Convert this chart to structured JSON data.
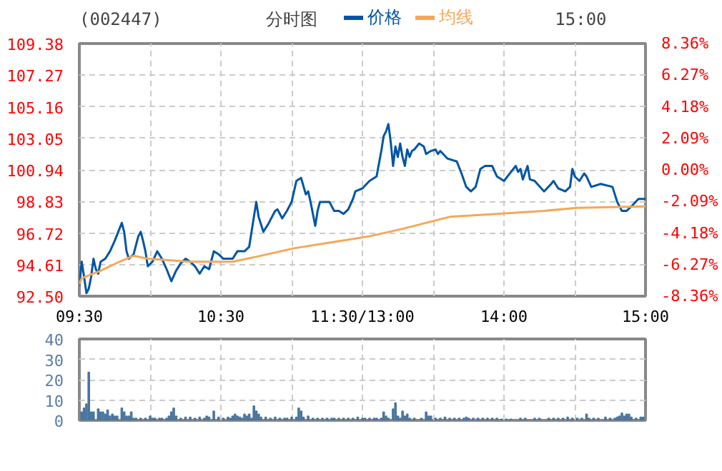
{
  "chart_data": [
    {
      "type": "line",
      "title": "(002447)",
      "subtitle": "分时图",
      "annotations": [
        "15:00"
      ],
      "categories": [
        "09:30",
        null,
        null,
        null,
        null,
        null,
        null,
        null,
        null,
        null,
        null,
        null,
        null,
        null,
        null,
        null,
        null,
        null,
        null,
        null,
        null,
        null,
        null,
        null,
        null,
        null,
        null,
        null,
        null,
        null,
        null,
        null,
        null,
        null,
        null,
        null,
        null,
        null,
        null,
        null,
        null,
        null,
        null,
        null,
        null,
        null,
        null,
        null,
        null,
        null,
        null,
        null,
        null,
        null,
        null,
        null,
        null,
        null,
        null,
        null,
        "10:30",
        null,
        null,
        null,
        null,
        null,
        null,
        null,
        null,
        null,
        null,
        null,
        null,
        null,
        null,
        null,
        null,
        null,
        null,
        null,
        null,
        null,
        null,
        null,
        null,
        null,
        null,
        null,
        null,
        null,
        null,
        null,
        null,
        null,
        null,
        null,
        null,
        null,
        null,
        null,
        null,
        null,
        null,
        null,
        null,
        null,
        null,
        null,
        null,
        null,
        null,
        null,
        null,
        null,
        null,
        null,
        null,
        null,
        null,
        null,
        "11:30/13:00",
        null,
        null,
        null,
        null,
        null,
        null,
        null,
        null,
        null,
        null,
        null,
        null,
        null,
        null,
        null,
        null,
        null,
        null,
        null,
        null,
        null,
        null,
        null,
        null,
        null,
        null,
        null,
        null,
        null,
        null,
        null,
        null,
        null,
        null,
        null,
        null,
        null,
        null,
        null,
        null,
        null,
        null,
        null,
        null,
        null,
        null,
        null,
        null,
        null,
        null,
        null,
        null,
        null,
        null,
        null,
        null,
        null,
        null,
        null,
        "14:00",
        null,
        null,
        null,
        null,
        null,
        null,
        null,
        null,
        null,
        null,
        null,
        null,
        null,
        null,
        null,
        null,
        null,
        null,
        null,
        null,
        null,
        null,
        null,
        null,
        null,
        null,
        null,
        null,
        null,
        null,
        null,
        null,
        null,
        null,
        null,
        null,
        null,
        null,
        null,
        null,
        null,
        null,
        null,
        null,
        null,
        null,
        null,
        null,
        null,
        null,
        null,
        null,
        null,
        null,
        null,
        null,
        null,
        null,
        null,
        "15:00"
      ],
      "ylim": [
        92.5,
        109.38
      ],
      "yticks": [
        {
          "value": 92.5,
          "label": "92.50"
        },
        94.61,
        96.72,
        98.83,
        100.94,
        103.05,
        105.16,
        107.27,
        109.38
      ],
      "y2lim": [
        -8.36,
        8.36
      ],
      "y2ticks": [
        {
          "value": -8.36,
          "label": "-8.36%"
        },
        {
          "value": -6.27,
          "label": "-6.27%"
        },
        {
          "value": -4.18,
          "label": "-4.18%"
        },
        {
          "value": -2.09,
          "label": "-2.09%"
        },
        {
          "value": 0,
          "label": "0.00%"
        },
        {
          "value": 2.09,
          "label": "2.09%"
        },
        {
          "value": 4.18,
          "label": "4.18%"
        },
        {
          "value": 6.27,
          "label": "6.27%"
        },
        {
          "value": 8.36,
          "label": "8.36%"
        }
      ],
      "grid": true,
      "legend": "top",
      "series": [
        {
          "name": "价格",
          "color": "#0055a5",
          "values": [
            93.2,
            94.8,
            93.8,
            92.7,
            93.0,
            93.8,
            95.0,
            94.3,
            94.0,
            94.8,
            null,
            95.0,
            null,
            95.5,
            null,
            96.2,
            null,
            97.0,
            97.4,
            96.8,
            95.5,
            95.0,
            null,
            95.3,
            null,
            96.5,
            96.8,
            96.2,
            95.5,
            94.5,
            null,
            94.8,
            null,
            95.5,
            null,
            95.0,
            null,
            94.3,
            null,
            93.5,
            null,
            94.2,
            null,
            94.7,
            null,
            95.0,
            null,
            94.8,
            null,
            94.5,
            null,
            94.0,
            null,
            94.5,
            null,
            94.3,
            null,
            95.5,
            null,
            95.3,
            null,
            95.0,
            null,
            null,
            null,
            95.0,
            null,
            95.5,
            null,
            null,
            95.5,
            null,
            95.8,
            null,
            97.8,
            98.8,
            97.8,
            null,
            96.8,
            null,
            97.3,
            null,
            null,
            98.2,
            98.3,
            null,
            97.7,
            null,
            98.2,
            null,
            98.8,
            null,
            100.2,
            null,
            100.4,
            null,
            99.3,
            99.5,
            98.8,
            null,
            97.2,
            98.2,
            98.8,
            null,
            null,
            null,
            98.8,
            98.5,
            98.2,
            null,
            98.2,
            null,
            98.0,
            null,
            98.3,
            null,
            99.0,
            99.5,
            null,
            null,
            99.7,
            null,
            null,
            100.2,
            null,
            null,
            100.5,
            null,
            102.2,
            103.2,
            103.5,
            104.0,
            102.8,
            101.2,
            102.5,
            101.8,
            102.7,
            101.8,
            101.2,
            102.3,
            101.8,
            102.2,
            102.3,
            null,
            102.7,
            null,
            102.5,
            102.0,
            null,
            102.2,
            null,
            102.3,
            102.0,
            102.2,
            null,
            null,
            101.7,
            null,
            null,
            null,
            101.5,
            null,
            100.7,
            null,
            99.8,
            null,
            99.5,
            null,
            99.8,
            null,
            101.0,
            null,
            101.2,
            null,
            null,
            101.2,
            null,
            100.5,
            null,
            null,
            100.2,
            null,
            null,
            100.8,
            null,
            101.2,
            100.8,
            101.0,
            100.3,
            null,
            101.2,
            100.3,
            null,
            100.2,
            null,
            null,
            null,
            99.5,
            null,
            null,
            100.0,
            100.2,
            null,
            99.7,
            null,
            null,
            99.5,
            null,
            99.8,
            101.0,
            100.5,
            null,
            100.2,
            null,
            100.7,
            100.5,
            null,
            99.8,
            null,
            null,
            null,
            100.0,
            null,
            null,
            null,
            null,
            99.8,
            null,
            98.8,
            null,
            98.2,
            null,
            98.2,
            null,
            98.5,
            null,
            null,
            99.0,
            null,
            null,
            99.0
          ]
        },
        {
          "name": "均线",
          "color": "#f5a857",
          "values": [
            93.3,
            93.7,
            null,
            null,
            null,
            null,
            null,
            null,
            null,
            94.2,
            null,
            null,
            null,
            null,
            null,
            null,
            null,
            94.8,
            null,
            null,
            null,
            null,
            null,
            95.2,
            null,
            null,
            null,
            null,
            null,
            95.0,
            null,
            null,
            null,
            null,
            null,
            null,
            null,
            null,
            null,
            null,
            null,
            null,
            null,
            null,
            null,
            null,
            null,
            94.8,
            null,
            null,
            null,
            null,
            null,
            null,
            null,
            null,
            null,
            null,
            null,
            null,
            null,
            null,
            null,
            null,
            null,
            94.8,
            null,
            null,
            null,
            null,
            null,
            null,
            null,
            null,
            null,
            null,
            null,
            95.2,
            null,
            null,
            null,
            null,
            null,
            null,
            null,
            null,
            null,
            null,
            null,
            null,
            null,
            95.7,
            null,
            null,
            null,
            null,
            null,
            null,
            null,
            null,
            null,
            null,
            null,
            null,
            null,
            null,
            null,
            96.1,
            null,
            null,
            null,
            null,
            null,
            null,
            null,
            null,
            null,
            null,
            null,
            null,
            null,
            null,
            null,
            96.5,
            null,
            null,
            null,
            null,
            null,
            null,
            null,
            null,
            null,
            null,
            null,
            null,
            null,
            97.0,
            null,
            null,
            null,
            null,
            null,
            null,
            null,
            null,
            null,
            null,
            null,
            null,
            null,
            null,
            null,
            null,
            null,
            null,
            null,
            97.8,
            null,
            null,
            null,
            null,
            null,
            null,
            null,
            null,
            null,
            null,
            null,
            null,
            null,
            null,
            null,
            null,
            null,
            null,
            null,
            98.0,
            null,
            null,
            null,
            null,
            null,
            null,
            null,
            null,
            null,
            null,
            null,
            null,
            null,
            null,
            null,
            null,
            null,
            null,
            null,
            98.2,
            null,
            null,
            null,
            null,
            null,
            null,
            null,
            null,
            null,
            null,
            null,
            null,
            null,
            98.4,
            null,
            null,
            null,
            null,
            null,
            null,
            null,
            null,
            null,
            null,
            null,
            null,
            null,
            null,
            null,
            null,
            null,
            null,
            null,
            null,
            null,
            null,
            null,
            null,
            null,
            null,
            null,
            null,
            98.5
          ]
        }
      ]
    },
    {
      "type": "bar",
      "color": "#4a76a0",
      "tick_labels": "y",
      "categories": [
        null,
        null,
        null,
        null,
        null,
        null,
        null,
        null,
        null,
        null,
        null,
        null,
        null,
        null,
        null,
        null,
        null,
        null,
        null,
        null,
        null,
        null,
        null,
        null,
        null,
        null,
        null,
        null,
        null,
        null,
        null,
        null,
        null,
        null,
        null,
        null,
        null,
        null,
        null,
        null,
        null,
        null,
        null,
        null,
        null,
        null,
        null,
        null,
        null,
        null,
        null,
        null,
        null,
        null,
        null,
        null,
        null,
        null,
        null,
        null,
        null,
        null,
        null,
        null,
        null,
        null,
        null,
        null,
        null,
        null,
        null,
        null,
        null,
        null,
        null,
        null,
        null,
        null,
        null,
        null,
        null,
        null,
        null,
        null,
        null,
        null,
        null,
        null,
        null,
        null,
        null,
        null,
        null,
        null,
        null,
        null,
        null,
        null,
        null,
        null,
        null,
        null,
        null,
        null,
        null,
        null,
        null,
        null,
        null,
        null,
        null,
        null,
        null,
        null,
        null,
        null,
        null,
        null,
        null,
        null,
        null,
        null,
        null,
        null,
        null,
        null,
        null,
        null,
        null,
        null,
        null,
        null,
        null,
        null,
        null,
        null,
        null,
        null,
        null,
        null,
        null,
        null,
        null,
        null,
        null,
        null,
        null,
        null,
        null,
        null,
        null,
        null,
        null,
        null,
        null,
        null,
        null,
        null,
        null,
        null,
        null,
        null,
        null,
        null,
        null,
        null,
        null,
        null,
        null,
        null,
        null,
        null,
        null,
        null,
        null,
        null,
        null,
        null,
        null,
        null,
        null,
        null,
        null,
        null,
        null,
        null,
        null,
        null,
        null,
        null,
        null,
        null,
        null,
        null,
        null,
        null,
        null,
        null,
        null,
        null,
        null,
        null,
        null,
        null,
        null,
        null,
        null,
        null,
        null,
        null,
        null,
        null,
        null,
        null,
        null,
        null,
        null,
        null,
        null,
        null,
        null,
        null,
        null,
        null,
        null,
        null,
        null,
        null,
        null,
        null,
        null,
        null,
        null,
        null,
        null,
        null,
        null,
        null,
        null,
        null,
        null
      ],
      "ylim": [
        0,
        40
      ],
      "yticks": [
        0,
        10,
        20,
        30,
        40
      ],
      "grid": true,
      "values": [
        null,
        4,
        6,
        8,
        23.6,
        4,
        4,
        null,
        5.5,
        4,
        4,
        3,
        5,
        2,
        3,
        2,
        2,
        null,
        6,
        4,
        2,
        2,
        4,
        1,
        1,
        null,
        1,
        null,
        1,
        null,
        2,
        1,
        1,
        null,
        1,
        1,
        null,
        1,
        2,
        4,
        6,
        2,
        null,
        1,
        null,
        1.5,
        null,
        1.5,
        null,
        1,
        null,
        1.5,
        null,
        1,
        2,
        1.5,
        null,
        4.5,
        null,
        1.5,
        null,
        1,
        null,
        1.5,
        1,
        2,
        3,
        2,
        1.5,
        1,
        3,
        2,
        3,
        1,
        7,
        4.5,
        3,
        1.5,
        null,
        1.5,
        null,
        1,
        null,
        1.5,
        null,
        1,
        null,
        1,
        1,
        null,
        1.5,
        null,
        1.5,
        6,
        4.5,
        1.5,
        null,
        2,
        null,
        1,
        null,
        1,
        null,
        1,
        null,
        1,
        null,
        1,
        1,
        null,
        1,
        null,
        1,
        null,
        1,
        null,
        1,
        null,
        1.5,
        null,
        1,
        1,
        null,
        1,
        null,
        1,
        1,
        null,
        1,
        4,
        2,
        1,
        null,
        5.5,
        8.5,
        2,
        1,
        4.5,
        2,
        3,
        1,
        null,
        1,
        null,
        null,
        1,
        null,
        4,
        2,
        2,
        null,
        1,
        null,
        1,
        null,
        1.5,
        null,
        1,
        null,
        1,
        null,
        1,
        null,
        1,
        1.5,
        1,
        null,
        1,
        null,
        1,
        null,
        1,
        null,
        1,
        null,
        1,
        null,
        1,
        null,
        0.5,
        null,
        0.5,
        null,
        0.5,
        null,
        null,
        null,
        1,
        null,
        1,
        null,
        null,
        null,
        1,
        null,
        1,
        null,
        null,
        null,
        1,
        null,
        1,
        null,
        1,
        null,
        1,
        null,
        1.5,
        null,
        1,
        null,
        1,
        null,
        1,
        null,
        3,
        1,
        null,
        1,
        null,
        1,
        null,
        null,
        1.5,
        null,
        1,
        null,
        1,
        1.5,
        2,
        3.5,
        2,
        3,
        3,
        1.5,
        null,
        1,
        null,
        1.5,
        1.5,
        null
      ]
    }
  ]
}
